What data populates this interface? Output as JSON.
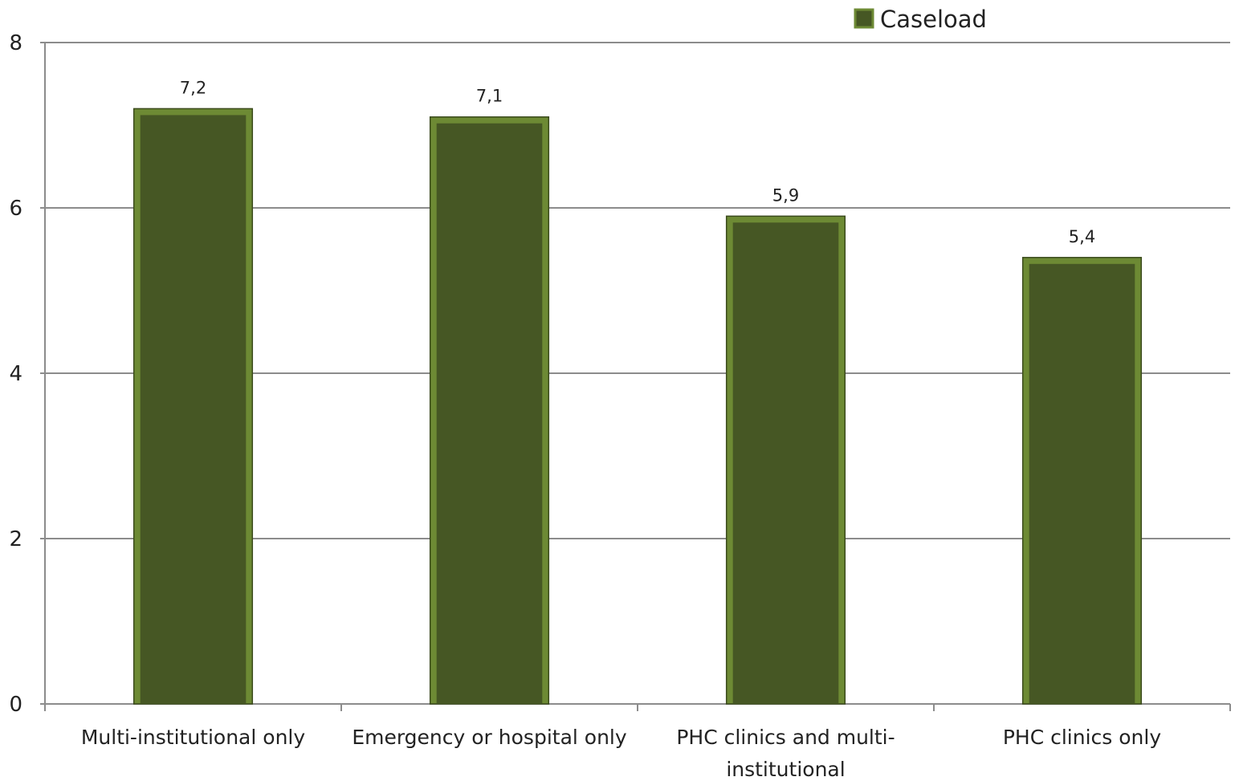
{
  "chart_data": {
    "type": "bar",
    "categories": [
      [
        "Multi-institutional only"
      ],
      [
        "Emergency or hospital only"
      ],
      [
        "PHC clinics and multi-",
        "institutional"
      ],
      [
        "PHC clinics only"
      ]
    ],
    "series": [
      {
        "name": "Caseload",
        "values": [
          7.2,
          7.1,
          5.9,
          5.4
        ]
      }
    ],
    "data_labels": [
      "7,2",
      "7,1",
      "5,9",
      "5,4"
    ],
    "yticks": [
      0,
      2,
      4,
      6,
      8
    ],
    "ylim": [
      0,
      8
    ],
    "grid": true,
    "legend_position": "top-right",
    "colors": {
      "bar_fill": "#465724",
      "bar_edge": "#6d8a34",
      "bar_outline": "#3a4a1c",
      "grid": "#8c8c8c"
    }
  }
}
